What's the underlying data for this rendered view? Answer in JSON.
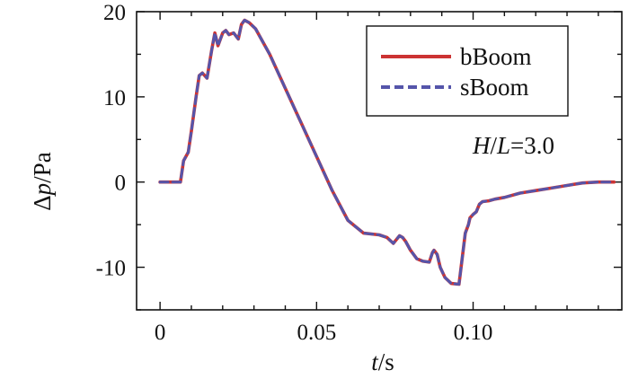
{
  "chart_data": {
    "type": "line",
    "xlabel_var": "t",
    "xlabel_unit": "/s",
    "ylabel_delta": "Δ",
    "ylabel_var": "p",
    "ylabel_unit": "/Pa",
    "xlim": [
      -0.0075,
      0.1475
    ],
    "ylim": [
      -15,
      20
    ],
    "x_ticks": [
      0,
      0.05,
      0.1
    ],
    "x_tick_labels": [
      "0",
      "0.05",
      "0.10"
    ],
    "y_ticks": [
      -10,
      0,
      10,
      20
    ],
    "y_tick_labels": [
      "-10",
      "0",
      "10",
      "20"
    ],
    "annotation": {
      "var1": "H",
      "slash": "/",
      "var2": "L",
      "rest": "=3.0"
    },
    "legend_placement": "top-right",
    "grid": false,
    "series": [
      {
        "name": "bBoom",
        "color": "#cc3333",
        "style": "solid",
        "x": [
          0,
          0.0065,
          0.0075,
          0.009,
          0.01,
          0.0115,
          0.0125,
          0.0135,
          0.015,
          0.0165,
          0.0175,
          0.0185,
          0.02,
          0.021,
          0.022,
          0.0235,
          0.025,
          0.026,
          0.027,
          0.0285,
          0.0305,
          0.035,
          0.04,
          0.045,
          0.05,
          0.055,
          0.06,
          0.065,
          0.07,
          0.0725,
          0.0745,
          0.0765,
          0.0775,
          0.0785,
          0.08,
          0.082,
          0.084,
          0.086,
          0.087,
          0.0875,
          0.0885,
          0.0895,
          0.091,
          0.093,
          0.0955,
          0.0965,
          0.0975,
          0.0985,
          0.099,
          0.1,
          0.101,
          0.102,
          0.103,
          0.105,
          0.107,
          0.11,
          0.115,
          0.12,
          0.125,
          0.13,
          0.135,
          0.14,
          0.145
        ],
        "values": [
          0,
          0,
          2.5,
          3.5,
          6.0,
          10.0,
          12.5,
          12.8,
          12.2,
          15.5,
          17.5,
          16.0,
          17.5,
          17.8,
          17.3,
          17.5,
          16.8,
          18.5,
          19.0,
          18.7,
          18.0,
          15.0,
          11.0,
          7.0,
          3.0,
          -1.0,
          -4.5,
          -6.0,
          -6.2,
          -6.5,
          -7.2,
          -6.3,
          -6.5,
          -7.0,
          -8.0,
          -9.0,
          -9.3,
          -9.4,
          -8.3,
          -8.0,
          -8.5,
          -10.0,
          -11.2,
          -11.9,
          -12.0,
          -9.0,
          -6.0,
          -5.0,
          -4.2,
          -3.8,
          -3.5,
          -2.6,
          -2.3,
          -2.2,
          -2.0,
          -1.8,
          -1.3,
          -1.0,
          -0.7,
          -0.4,
          -0.1,
          0,
          0
        ]
      },
      {
        "name": "sBoom",
        "color": "#5555aa",
        "style": "dashed",
        "x": [
          0,
          0.0065,
          0.0075,
          0.009,
          0.01,
          0.0115,
          0.0125,
          0.0135,
          0.015,
          0.0165,
          0.0175,
          0.0185,
          0.02,
          0.021,
          0.022,
          0.0235,
          0.025,
          0.026,
          0.027,
          0.0285,
          0.0305,
          0.035,
          0.04,
          0.045,
          0.05,
          0.055,
          0.06,
          0.065,
          0.07,
          0.0725,
          0.0745,
          0.0765,
          0.0775,
          0.0785,
          0.08,
          0.082,
          0.084,
          0.086,
          0.087,
          0.0875,
          0.0885,
          0.0895,
          0.091,
          0.093,
          0.0955,
          0.0965,
          0.0975,
          0.0985,
          0.099,
          0.1,
          0.101,
          0.102,
          0.103,
          0.105,
          0.107,
          0.11,
          0.115,
          0.12,
          0.125,
          0.13,
          0.135,
          0.14,
          0.145
        ],
        "values": [
          0,
          0,
          2.5,
          3.5,
          6.0,
          10.0,
          12.5,
          12.8,
          12.2,
          15.5,
          17.5,
          16.0,
          17.5,
          17.8,
          17.3,
          17.5,
          16.8,
          18.5,
          19.0,
          18.7,
          18.0,
          15.0,
          11.0,
          7.0,
          3.0,
          -1.0,
          -4.5,
          -6.0,
          -6.2,
          -6.5,
          -7.2,
          -6.3,
          -6.5,
          -7.0,
          -8.0,
          -9.0,
          -9.3,
          -9.4,
          -8.3,
          -8.0,
          -8.5,
          -10.0,
          -11.2,
          -11.9,
          -12.0,
          -9.0,
          -6.0,
          -5.0,
          -4.2,
          -3.8,
          -3.5,
          -2.6,
          -2.3,
          -2.2,
          -2.0,
          -1.8,
          -1.3,
          -1.0,
          -0.7,
          -0.4,
          -0.1,
          0,
          0
        ]
      }
    ]
  }
}
